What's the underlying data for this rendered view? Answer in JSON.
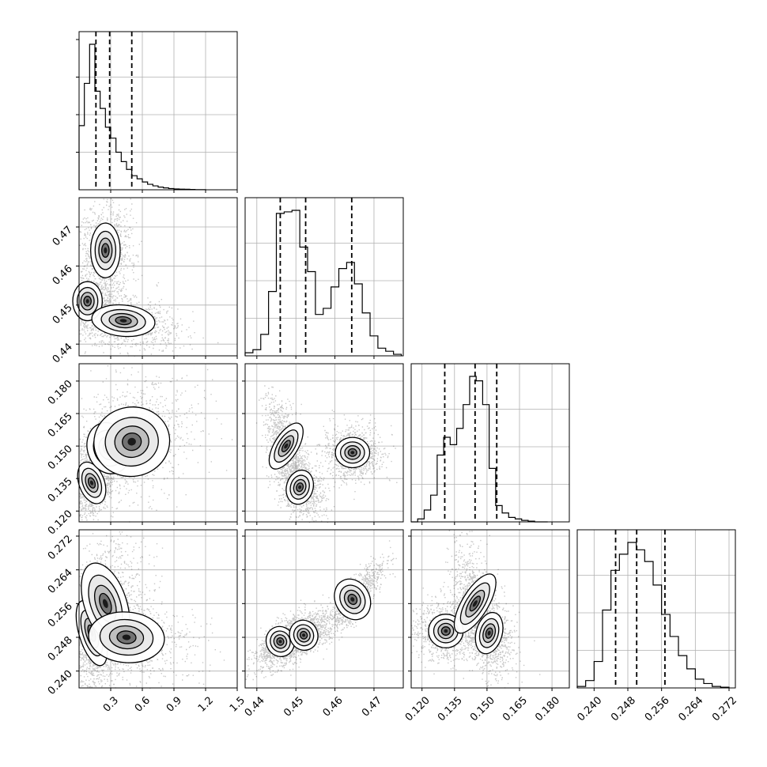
{
  "chart_data": {
    "type": "scatter",
    "description_kind": "corner plot (marginal histograms + pairwise 2D density scatter with contours)",
    "grid": true,
    "parameters": [
      {
        "index": 0,
        "range": [
          0.0,
          1.5
        ],
        "ticks": [
          "0.3",
          "0.6",
          "0.9",
          "1.2",
          "1.5"
        ],
        "quantiles": [
          0.16,
          0.29,
          0.5
        ],
        "hist": {
          "bin_edges": [
            0.0,
            0.05,
            0.1,
            0.15,
            0.2,
            0.25,
            0.3,
            0.35,
            0.4,
            0.45,
            0.5,
            0.55,
            0.6,
            0.65,
            0.7,
            0.75,
            0.8,
            0.85,
            0.9,
            0.95,
            1.0,
            1.05,
            1.1,
            1.15,
            1.2
          ],
          "counts": [
            0.41,
            0.68,
            0.93,
            0.63,
            0.52,
            0.4,
            0.33,
            0.24,
            0.18,
            0.13,
            0.09,
            0.07,
            0.05,
            0.035,
            0.025,
            0.017,
            0.012,
            0.008,
            0.005,
            0.004,
            0.003,
            0.002,
            0.001,
            0.0005
          ]
        }
      },
      {
        "index": 1,
        "range": [
          0.437,
          0.4775
        ],
        "ticks": [
          "0.44",
          "0.45",
          "0.46",
          "0.47"
        ],
        "quantiles": [
          0.446,
          0.4525,
          0.4643
        ],
        "hist": {
          "bin_edges": [
            0.437,
            0.439,
            0.441,
            0.443,
            0.445,
            0.447,
            0.449,
            0.451,
            0.453,
            0.455,
            0.457,
            0.459,
            0.461,
            0.463,
            0.465,
            0.467,
            0.469,
            0.471,
            0.473,
            0.475,
            0.477
          ],
          "counts": [
            0.02,
            0.04,
            0.14,
            0.42,
            0.93,
            0.94,
            0.95,
            0.71,
            0.55,
            0.27,
            0.31,
            0.45,
            0.57,
            0.61,
            0.47,
            0.28,
            0.13,
            0.05,
            0.03,
            0.01
          ]
        }
      },
      {
        "index": 2,
        "range": [
          0.115,
          0.188
        ],
        "ticks": [
          "0.120",
          "0.135",
          "0.150",
          "0.165",
          "0.180"
        ],
        "quantiles": [
          0.1305,
          0.1445,
          0.1545
        ],
        "hist": {
          "bin_edges": [
            0.115,
            0.118,
            0.121,
            0.124,
            0.127,
            0.13,
            0.133,
            0.136,
            0.139,
            0.142,
            0.145,
            0.148,
            0.151,
            0.154,
            0.157,
            0.16,
            0.163,
            0.166,
            0.169,
            0.172,
            0.175,
            0.178
          ],
          "counts": [
            0.0,
            0.02,
            0.08,
            0.18,
            0.45,
            0.57,
            0.52,
            0.63,
            0.79,
            0.98,
            0.95,
            0.79,
            0.36,
            0.11,
            0.06,
            0.03,
            0.02,
            0.01,
            0.005,
            0.0,
            0.0
          ]
        }
      },
      {
        "index": 3,
        "range": [
          0.236,
          0.2735
        ],
        "ticks": [
          "0.240",
          "0.248",
          "0.256",
          "0.264",
          "0.272"
        ],
        "quantiles": [
          0.2451,
          0.2501,
          0.2568
        ],
        "hist": {
          "bin_edges": [
            0.236,
            0.238,
            0.24,
            0.242,
            0.244,
            0.246,
            0.248,
            0.25,
            0.252,
            0.254,
            0.256,
            0.258,
            0.26,
            0.262,
            0.264,
            0.266,
            0.268,
            0.27,
            0.272
          ],
          "counts": [
            0.01,
            0.05,
            0.18,
            0.53,
            0.8,
            0.91,
            0.99,
            0.94,
            0.86,
            0.7,
            0.5,
            0.35,
            0.22,
            0.13,
            0.06,
            0.03,
            0.01,
            0.005
          ]
        }
      }
    ],
    "pairs": [
      {
        "row": 1,
        "col": 0,
        "modes": [
          [
            0.25,
            0.464,
            0.07,
            0.0035,
            0.35,
            0
          ],
          [
            0.08,
            0.451,
            0.07,
            0.0025,
            0.45,
            0
          ],
          [
            0.42,
            0.446,
            0.15,
            0.002,
            0.25,
            -0.3
          ]
        ]
      },
      {
        "row": 2,
        "col": 0,
        "modes": [
          [
            0.12,
            0.133,
            0.06,
            0.005,
            0.35,
            0.4
          ],
          [
            0.28,
            0.149,
            0.1,
            0.006,
            0.3,
            0.5
          ],
          [
            0.5,
            0.152,
            0.18,
            0.008,
            0.25,
            0.3
          ]
        ]
      },
      {
        "row": 2,
        "col": 1,
        "modes": [
          [
            0.4475,
            0.15,
            0.0015,
            0.006,
            0.3,
            -0.6
          ],
          [
            0.451,
            0.131,
            0.0017,
            0.004,
            0.35,
            -0.4
          ],
          [
            0.4645,
            0.147,
            0.0022,
            0.0035,
            0.3,
            0
          ]
        ]
      },
      {
        "row": 3,
        "col": 0,
        "modes": [
          [
            0.12,
            0.249,
            0.06,
            0.004,
            0.4,
            0.2
          ],
          [
            0.25,
            0.256,
            0.1,
            0.005,
            0.3,
            0.3
          ],
          [
            0.45,
            0.248,
            0.18,
            0.003,
            0.2,
            -0.2
          ]
        ]
      },
      {
        "row": 3,
        "col": 1,
        "modes": [
          [
            0.446,
            0.247,
            0.0018,
            0.0018,
            0.35,
            0.7
          ],
          [
            0.452,
            0.2485,
            0.0018,
            0.0018,
            0.3,
            0.7
          ],
          [
            0.4645,
            0.257,
            0.0022,
            0.0025,
            0.35,
            0.85
          ]
        ]
      },
      {
        "row": 3,
        "col": 2,
        "modes": [
          [
            0.131,
            0.2495,
            0.004,
            0.002,
            0.35,
            0
          ],
          [
            0.1445,
            0.256,
            0.003,
            0.004,
            0.3,
            -0.5
          ],
          [
            0.151,
            0.249,
            0.003,
            0.0025,
            0.35,
            -0.3
          ]
        ]
      }
    ]
  }
}
